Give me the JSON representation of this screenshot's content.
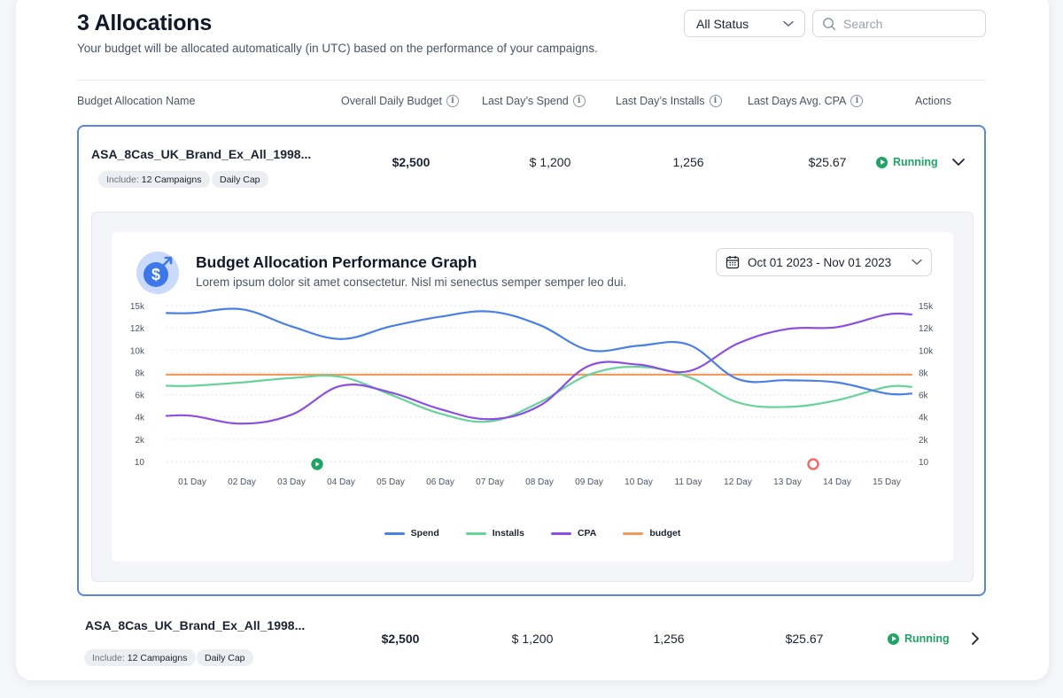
{
  "header": {
    "title": "3 Allocations",
    "subtitle": "Your budget will be allocated automatically (in UTC) based on the performance of your campaigns.",
    "status_filter": "All Status",
    "search_placeholder": "Search"
  },
  "columns": {
    "name": "Budget Allocation Name",
    "daily_budget": "Overall Daily Budget",
    "spend": "Last Day’s Spend",
    "installs": "Last Day’s Installs",
    "cpa": "Last Days Avg. CPA",
    "actions": "Actions"
  },
  "rows": [
    {
      "name": "ASA_8Cas_UK_Brand_Ex_All_1998...",
      "include_prefix": "Include:",
      "include_value": "12 Campaigns",
      "cap": "Daily Cap",
      "budget": "$2,500",
      "spend": "$ 1,200",
      "installs": "1,256",
      "cpa": "$25.67",
      "status": "Running"
    },
    {
      "name": "ASA_8Cas_UK_Brand_Ex_All_1998...",
      "include_prefix": "Include:",
      "include_value": "12 Campaigns",
      "cap": "Daily Cap",
      "budget": "$2,500",
      "spend": "$ 1,200",
      "installs": "1,256",
      "cpa": "$25.67",
      "status": "Running"
    }
  ],
  "graph": {
    "title": "Budget Allocation Performance Graph",
    "subtitle": "Lorem ipsum dolor sit amet consectetur. Nisl mi senectus semper semper leo dui.",
    "date_range": "Oct 01 2023 - Nov 01 2023",
    "icon_symbol": "$"
  },
  "chart_data": {
    "type": "line",
    "title": "Budget Allocation Performance Graph",
    "categories": [
      "01 Day",
      "02 Day",
      "03 Day",
      "04 Day",
      "05 Day",
      "06 Day",
      "07  Day",
      "08 Day",
      "09 Day",
      "10 Day",
      "11 Day",
      "12 Day",
      "13 Day",
      "14 Day",
      "15 Day"
    ],
    "y_ticks": [
      "15k",
      "12k",
      "10k",
      "8k",
      "6k",
      "4k",
      "2k",
      "10"
    ],
    "y_tick_values": [
      15000,
      12000,
      10000,
      8000,
      6000,
      4000,
      2000,
      10
    ],
    "ylim": [
      10,
      15000
    ],
    "series": [
      {
        "name": "Spend",
        "color": "#4a7fe6",
        "values": [
          14000,
          14500,
          12200,
          11000,
          12200,
          13500,
          14200,
          12400,
          10000,
          10400,
          10500,
          7400,
          7300,
          7100,
          6100
        ]
      },
      {
        "name": "Installs",
        "color": "#67d39b",
        "values": [
          6800,
          7100,
          7500,
          7600,
          6000,
          4300,
          3600,
          5300,
          7800,
          8500,
          7600,
          5300,
          4900,
          5500,
          6700
        ]
      },
      {
        "name": "CPA",
        "color": "#8b4fe2",
        "values": [
          4100,
          3400,
          4200,
          6800,
          6200,
          4700,
          3800,
          5000,
          8600,
          8700,
          8100,
          10600,
          11900,
          12100,
          13800
        ]
      },
      {
        "name": "budget",
        "color": "#f39a5a",
        "values": [
          7800,
          7800,
          7800,
          7800,
          7800,
          7800,
          7800,
          7800,
          7800,
          7800,
          7800,
          7800,
          7800,
          7800,
          7800
        ]
      }
    ],
    "markers": [
      {
        "type": "start",
        "at": "04 Day",
        "color": "#21a366"
      },
      {
        "type": "stop",
        "at": "14 Day",
        "color": "#f06a6a"
      }
    ],
    "legend_position": "bottom-center",
    "grid": true
  }
}
